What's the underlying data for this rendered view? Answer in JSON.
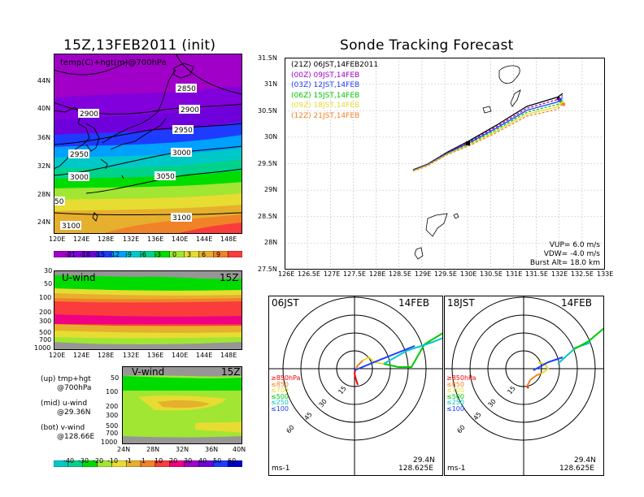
{
  "left": {
    "title": "15Z,13FEB2011 (init)",
    "map": {
      "label": "temp(C)+hgt(m)@700hPa",
      "lat_ticks": [
        "44N",
        "40N",
        "36N",
        "32N",
        "28N",
        "24N"
      ],
      "lon_ticks": [
        "120E",
        "124E",
        "128E",
        "132E",
        "136E",
        "140E",
        "144E",
        "148E"
      ],
      "contour_labels": [
        "2850",
        "2900",
        "2900",
        "2950",
        "2950",
        "3000",
        "3000",
        "3050",
        "3100",
        "3100",
        "50"
      ],
      "colorbar_labels": [
        "-21",
        "-18",
        "-15",
        "-12",
        "-9",
        "-6",
        "-3",
        "0",
        "3",
        "6",
        "9"
      ],
      "colorbar_colors": [
        "#a000c8",
        "#8200dc",
        "#6e00dc",
        "#1e3cff",
        "#00a0ff",
        "#00c8c8",
        "#00d28c",
        "#00dc00",
        "#a0e632",
        "#e6dc32",
        "#e6af2d",
        "#f08228",
        "#fa3c3c"
      ]
    },
    "uwind": {
      "label": "U-wind",
      "time": "15Z",
      "p_ticks": [
        "30",
        "50",
        "100",
        "200",
        "300",
        "500",
        "700",
        "1000"
      ],
      "lon_ticks": [
        "120E",
        "124E",
        "128E",
        "132E",
        "136E",
        "140E",
        "144E",
        "148E"
      ]
    },
    "vwind": {
      "label": "V-wind",
      "time": "15Z",
      "p_ticks": [
        "50",
        "100",
        "200",
        "300",
        "500",
        "700",
        "1000"
      ],
      "lat_ticks": [
        "24N",
        "28N",
        "32N",
        "36N",
        "40N"
      ]
    },
    "notes": [
      [
        "(up) tmp+hgt",
        "@700hPa"
      ],
      [
        "(mid) u-wind",
        "@29.36N"
      ],
      [
        "(bot) v-wind",
        "@128.66E"
      ]
    ],
    "wind_colorbar_labels": [
      "-40",
      "-30",
      "-20",
      "-10",
      "-1",
      "1",
      "10",
      "20",
      "30",
      "40",
      "50",
      "60"
    ],
    "wind_colorbar_colors": [
      "#00c8c8",
      "#00d28c",
      "#00dc00",
      "#a0e632",
      "#e6dc32",
      "#e6af2d",
      "#f08228",
      "#fa3c3c",
      "#f00082",
      "#a000c8",
      "#6e00dc",
      "#1e3cff",
      "#0000c8"
    ]
  },
  "right": {
    "title": "Sonde Tracking Forecast",
    "track": {
      "lat_ticks": [
        "31.5N",
        "31N",
        "30.5N",
        "30N",
        "29.5N",
        "29N",
        "28.5N",
        "28N",
        "27.5N"
      ],
      "lon_ticks": [
        "126E",
        "126.5E",
        "127E",
        "127.5E",
        "128E",
        "128.5E",
        "129E",
        "129.5E",
        "130E",
        "130.5E",
        "131E",
        "131.5E",
        "132E",
        "132.5E",
        "133E"
      ],
      "legend": [
        {
          "code": "(21Z)",
          "label": "06JST,14FEB2011",
          "color": "#000000"
        },
        {
          "code": "(00Z)",
          "label": "09JST,14FEB",
          "color": "#a000c8"
        },
        {
          "code": "(03Z)",
          "label": "12JST,14FEB",
          "color": "#1e3cff"
        },
        {
          "code": "(06Z)",
          "label": "15JST,14FEB",
          "color": "#00c800"
        },
        {
          "code": "(09Z)",
          "label": "18JST,14FEB",
          "color": "#e6dc32"
        },
        {
          "code": "(12Z)",
          "label": "21JST,14FEB",
          "color": "#f08228"
        }
      ],
      "params": [
        "VUP= 6.0 m/s",
        "VDW= -4.0 m/s",
        "Burst Alt= 18.0 km"
      ]
    },
    "hodo1": {
      "time": "06JST",
      "date": "14FEB",
      "lat": "29.4N",
      "lon": "128.625E",
      "unit": "ms-1",
      "rings": [
        "15",
        "30",
        "45",
        "60"
      ],
      "levels": [
        {
          "label": "≥850hPa",
          "color": "#fa0000"
        },
        {
          "label": "≤850",
          "color": "#f08228"
        },
        {
          "label": "≤700",
          "color": "#e6dc32"
        },
        {
          "label": "≤500",
          "color": "#00c800"
        },
        {
          "label": "≤250",
          "color": "#00c8c8"
        },
        {
          "label": "≤100",
          "color": "#1e3cff"
        }
      ]
    },
    "hodo2": {
      "time": "18JST",
      "date": "14FEB",
      "lat": "29.4N",
      "lon": "128.625E",
      "unit": "ms-1",
      "rings": [
        "15",
        "30",
        "45",
        "60"
      ],
      "levels": [
        {
          "label": "≥850hPa",
          "color": "#fa0000"
        },
        {
          "label": "≤850",
          "color": "#f08228"
        },
        {
          "label": "≤700",
          "color": "#e6dc32"
        },
        {
          "label": "≤500",
          "color": "#00c800"
        },
        {
          "label": "≤250",
          "color": "#00c8c8"
        },
        {
          "label": "≤100",
          "color": "#1e3cff"
        }
      ]
    }
  }
}
